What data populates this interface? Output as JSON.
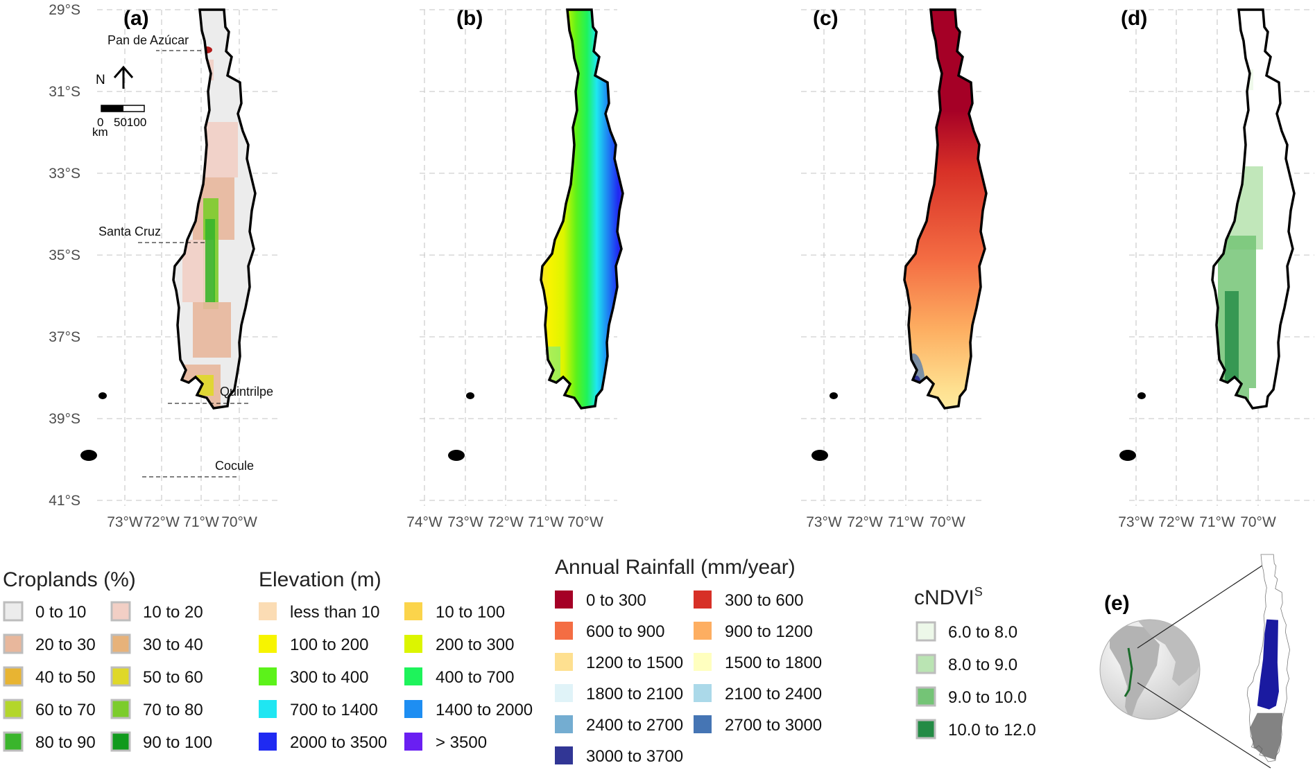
{
  "panels": [
    {
      "id": "a",
      "label": "(a)",
      "kind": "croplands",
      "xticks": [
        "73°W",
        "72°W",
        "71°W",
        "70°W"
      ]
    },
    {
      "id": "b",
      "label": "(b)",
      "kind": "elevation",
      "xticks": [
        "74°W",
        "73°W",
        "72°W",
        "71°W",
        "70°W"
      ]
    },
    {
      "id": "c",
      "label": "(c)",
      "kind": "rainfall",
      "xticks": [
        "73°W",
        "72°W",
        "71°W",
        "70°W"
      ]
    },
    {
      "id": "d",
      "label": "(d)",
      "kind": "cndvi",
      "xticks": [
        "73°W",
        "72°W",
        "71°W",
        "70°W"
      ]
    }
  ],
  "yticks": [
    "29°S",
    "31°S",
    "33°S",
    "35°S",
    "37°S",
    "39°S",
    "41°S"
  ],
  "places": [
    "Pan de Azúcar",
    "Santa Cruz",
    "Quintrilpe",
    "Cocule"
  ],
  "north_arrow": {
    "label": "N"
  },
  "scale_bar": {
    "ticks": [
      "0",
      "50100"
    ],
    "unit": "km"
  },
  "inset": {
    "label": "(e)"
  },
  "legends": {
    "croplands": {
      "title": "Croplands (%)",
      "items": [
        {
          "label": "0 to 10",
          "color": "#ececec"
        },
        {
          "label": "10 to 20",
          "color": "#f2cfc5"
        },
        {
          "label": "20 to 30",
          "color": "#e8b79c"
        },
        {
          "label": "30 to 40",
          "color": "#e7b27a"
        },
        {
          "label": "40 to 50",
          "color": "#e8b432"
        },
        {
          "label": "50 to 60",
          "color": "#dfd829"
        },
        {
          "label": "60 to 70",
          "color": "#b3d62b"
        },
        {
          "label": "70 to 80",
          "color": "#7ccc2c"
        },
        {
          "label": "80 to 90",
          "color": "#3ab52c"
        },
        {
          "label": "90 to 100",
          "color": "#119a1d"
        }
      ]
    },
    "elevation": {
      "title": "Elevation (m)",
      "items": [
        {
          "label": "less than 10",
          "color": "#fbdcb4"
        },
        {
          "label": "10 to 100",
          "color": "#fbd44b"
        },
        {
          "label": "100 to 200",
          "color": "#f7f400"
        },
        {
          "label": "200 to 300",
          "color": "#dcf500"
        },
        {
          "label": "300 to 400",
          "color": "#5cf21a"
        },
        {
          "label": "400 to 700",
          "color": "#1ef35b"
        },
        {
          "label": "700 to 1400",
          "color": "#1fe6f2"
        },
        {
          "label": "1400 to 2000",
          "color": "#1e8ef2"
        },
        {
          "label": "2000 to 3500",
          "color": "#1f2af2"
        },
        {
          "label": "> 3500",
          "color": "#6a1ff2"
        }
      ]
    },
    "rainfall": {
      "title": "Annual Rainfall (mm/year)",
      "items": [
        {
          "label": "0 to 300",
          "color": "#a50026"
        },
        {
          "label": "300 to 600",
          "color": "#d73027"
        },
        {
          "label": "600 to 900",
          "color": "#f46d43"
        },
        {
          "label": "900 to 1200",
          "color": "#fdae61"
        },
        {
          "label": "1200 to 1500",
          "color": "#fee090"
        },
        {
          "label": "1500 to 1800",
          "color": "#ffffbf"
        },
        {
          "label": "1800 to 2100",
          "color": "#e0f3f8"
        },
        {
          "label": "2100 to 2400",
          "color": "#abd9e9"
        },
        {
          "label": "2400 to 2700",
          "color": "#74add1"
        },
        {
          "label": "2700 to 3000",
          "color": "#4575b4"
        },
        {
          "label": "3000 to 3700",
          "color": "#313695"
        }
      ]
    },
    "cndvi": {
      "title": "cNDVI",
      "title_sup": "S",
      "items": [
        {
          "label": "6.0 to  8.0",
          "color": "#edf8e9"
        },
        {
          "label": "8.0 to  9.0",
          "color": "#bae4b3"
        },
        {
          "label": "9.0 to 10.0",
          "color": "#74c476"
        },
        {
          "label": "10.0 to 12.0",
          "color": "#238b45"
        }
      ]
    }
  }
}
